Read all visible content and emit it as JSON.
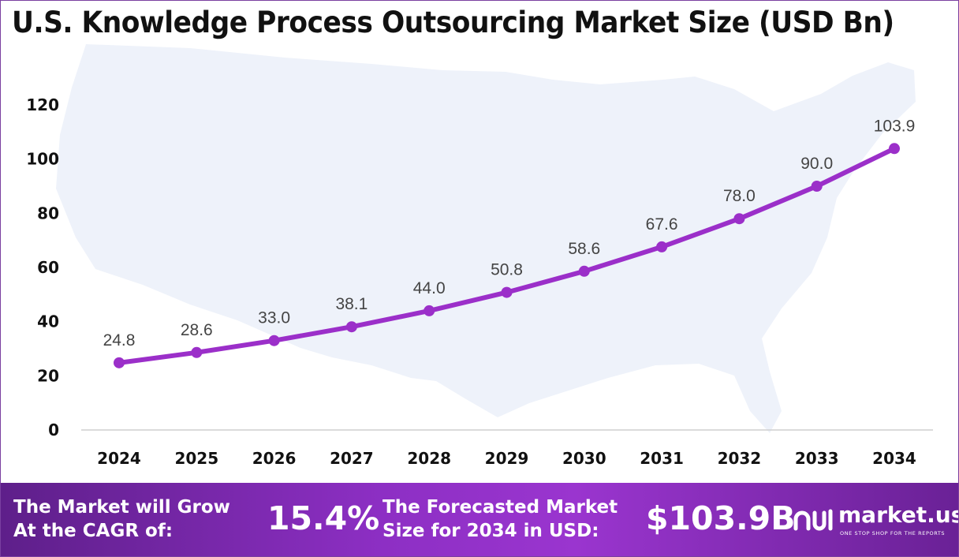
{
  "header": {
    "title": "U.S. Knowledge Process Outsourcing Market Size (USD Bn)"
  },
  "chart_data": {
    "type": "line",
    "title": "U.S. Knowledge Process Outsourcing Market Size (USD Bn)",
    "xlabel": "",
    "ylabel": "",
    "categories": [
      "2024",
      "2025",
      "2026",
      "2027",
      "2028",
      "2029",
      "2030",
      "2031",
      "2032",
      "2033",
      "2034"
    ],
    "series": [
      {
        "values": [
          24.8,
          28.6,
          33.0,
          38.1,
          44.0,
          50.8,
          58.6,
          67.6,
          78.0,
          90.0,
          103.9
        ],
        "labels": [
          "24.8",
          "28.6",
          "33.0",
          "38.1",
          "44.0",
          "50.8",
          "58.6",
          "67.6",
          "78.0",
          "90.0",
          "103.9"
        ],
        "color": "#9b2fc9"
      }
    ],
    "ylim": [
      0,
      120
    ],
    "yticks": [
      "0",
      "20",
      "40",
      "60",
      "80",
      "100",
      "120"
    ],
    "grid": false,
    "legend": "none"
  },
  "footer": {
    "cagr_line1": "The Market will Grow",
    "cagr_line2": "At the CAGR of:",
    "cagr_value": "15.4%",
    "forecast_line1": "The Forecasted Market",
    "forecast_line2": "Size for 2034 in USD:",
    "forecast_value": "$103.9B",
    "brand_name": "market.us",
    "brand_tagline": "ONE STOP SHOP FOR THE REPORTS"
  },
  "colors": {
    "line": "#9b2fc9",
    "map": "#eef2fa",
    "footer_start": "#5e1f8a",
    "footer_end": "#9a35cf"
  }
}
